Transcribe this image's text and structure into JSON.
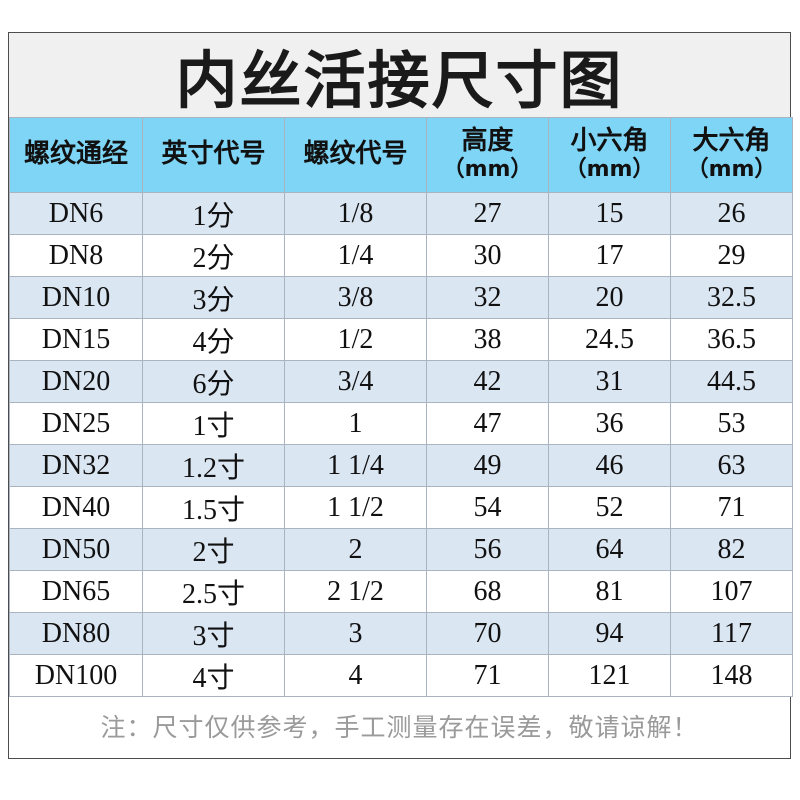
{
  "title": "内丝活接尺寸图",
  "headers": [
    {
      "label": "螺纹通经",
      "unit": ""
    },
    {
      "label": "英寸代号",
      "unit": ""
    },
    {
      "label": "螺纹代号",
      "unit": ""
    },
    {
      "label": "高度",
      "unit": "（mm）"
    },
    {
      "label": "小六角",
      "unit": "（mm）"
    },
    {
      "label": "大六角",
      "unit": "（mm）"
    }
  ],
  "rows": [
    [
      "DN6",
      "1分",
      "1/8",
      "27",
      "15",
      "26"
    ],
    [
      "DN8",
      "2分",
      "1/4",
      "30",
      "17",
      "29"
    ],
    [
      "DN10",
      "3分",
      "3/8",
      "32",
      "20",
      "32.5"
    ],
    [
      "DN15",
      "4分",
      "1/2",
      "38",
      "24.5",
      "36.5"
    ],
    [
      "DN20",
      "6分",
      "3/4",
      "42",
      "31",
      "44.5"
    ],
    [
      "DN25",
      "1寸",
      "1",
      "47",
      "36",
      "53"
    ],
    [
      "DN32",
      "1.2寸",
      "1 1/4",
      "49",
      "46",
      "63"
    ],
    [
      "DN40",
      "1.5寸",
      "1 1/2",
      "54",
      "52",
      "71"
    ],
    [
      "DN50",
      "2寸",
      "2",
      "56",
      "64",
      "82"
    ],
    [
      "DN65",
      "2.5寸",
      "2 1/2",
      "68",
      "81",
      "107"
    ],
    [
      "DN80",
      "3寸",
      "3",
      "70",
      "94",
      "117"
    ],
    [
      "DN100",
      "4寸",
      "4",
      "71",
      "121",
      "148"
    ]
  ],
  "note": "注：尺寸仅供参考，手工测量存在误差，敬请谅解！",
  "colors": {
    "header_bg": "#7fd5f6",
    "row_odd_bg": "#dbe6f3",
    "row_even_bg": "#ffffff",
    "note_text": "#9a9a9a"
  }
}
